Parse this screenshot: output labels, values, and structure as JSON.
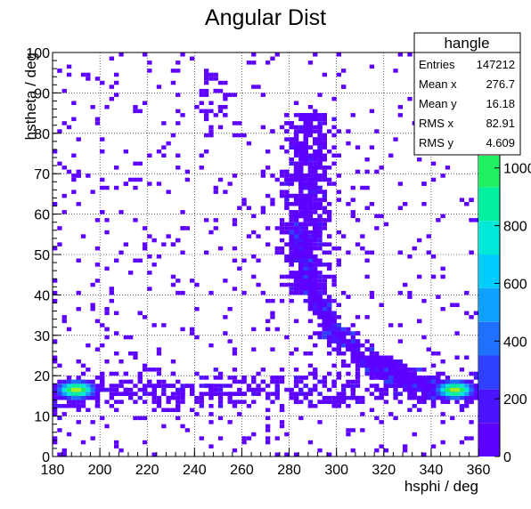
{
  "chart_data": {
    "type": "heatmap",
    "title": "Angular Dist",
    "xlabel": "hsphi / deg",
    "ylabel": "hstheta / deg",
    "xlim": [
      180,
      360
    ],
    "ylim": [
      0,
      100
    ],
    "x_ticks": [
      "180",
      "200",
      "220",
      "240",
      "260",
      "280",
      "300",
      "320",
      "340",
      "360"
    ],
    "y_ticks": [
      "0",
      "10",
      "20",
      "30",
      "40",
      "50",
      "60",
      "70",
      "80",
      "90",
      "100"
    ],
    "grid": true,
    "colorbar": {
      "min": 0,
      "max": 1400,
      "tick_labels": [
        "0",
        "200",
        "400",
        "600",
        "800",
        "1000"
      ],
      "palette": [
        "#5c00ff",
        "#4a14ff",
        "#3040ff",
        "#1f70ff",
        "#10a0ff",
        "#00ccff",
        "#00e8d8",
        "#00f0a0",
        "#20f060",
        "#60f030",
        "#a0f020",
        "#d8f020"
      ]
    },
    "stats_box": {
      "name": "hangle",
      "placement": "top-right",
      "rows": [
        {
          "label": "Entries",
          "value": "147212"
        },
        {
          "label": "Mean x",
          "value": "276.7"
        },
        {
          "label": "Mean y",
          "value": "16.18"
        },
        {
          "label": "RMS x",
          "value": "82.91"
        },
        {
          "label": "RMS y",
          "value": "4.609"
        }
      ]
    },
    "hot_regions": [
      {
        "x": [
          180,
          200
        ],
        "y": [
          13,
          20
        ],
        "level": "high"
      },
      {
        "x": [
          340,
          360
        ],
        "y": [
          13,
          20
        ],
        "level": "high"
      }
    ],
    "ridge": [
      {
        "x": 283,
        "y": 55
      },
      {
        "x": 290,
        "y": 40
      },
      {
        "x": 300,
        "y": 30
      },
      {
        "x": 315,
        "y": 23
      },
      {
        "x": 330,
        "y": 19
      },
      {
        "x": 345,
        "y": 16
      }
    ],
    "arch_band": {
      "x": [
        270,
        305
      ],
      "y": [
        40,
        85
      ]
    }
  }
}
